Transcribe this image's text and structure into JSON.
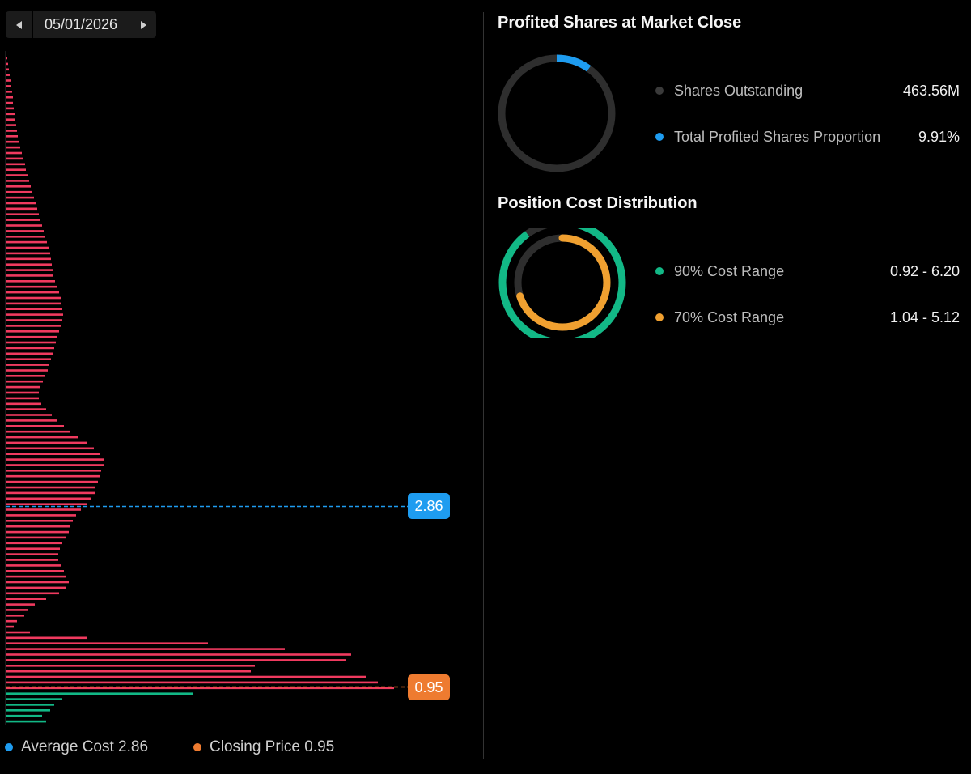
{
  "date_nav": {
    "date": "05/01/2026",
    "prev_icon": "chevron-left-icon",
    "next_icon": "chevron-right-icon"
  },
  "chart_data": {
    "type": "bar",
    "orientation": "horizontal",
    "description_source": "chip distribution by price level",
    "profit_color": "#12b886",
    "loss_color": "#f03a5f",
    "profit_bar_count": 6,
    "values": [
      1,
      2,
      3,
      4,
      5,
      6,
      7,
      8,
      9,
      9,
      10,
      11,
      12,
      13,
      14,
      15,
      17,
      18,
      20,
      22,
      24,
      25,
      27,
      29,
      31,
      33,
      35,
      37,
      39,
      41,
      43,
      45,
      47,
      49,
      51,
      53,
      55,
      56,
      57,
      58,
      59,
      61,
      63,
      66,
      68,
      69,
      70,
      71,
      70,
      68,
      66,
      64,
      62,
      60,
      58,
      56,
      54,
      52,
      49,
      46,
      43,
      41,
      41,
      44,
      50,
      57,
      64,
      72,
      80,
      90,
      100,
      109,
      117,
      122,
      121,
      118,
      116,
      114,
      111,
      110,
      106,
      100,
      93,
      87,
      83,
      80,
      78,
      74,
      70,
      67,
      65,
      65,
      68,
      72,
      75,
      78,
      74,
      66,
      50,
      36,
      27,
      23,
      14,
      10,
      30,
      100,
      250,
      345,
      427,
      420,
      308,
      303,
      445,
      460,
      480,
      232,
      70,
      60,
      55,
      45,
      50
    ],
    "average_cost": {
      "label": "2.86",
      "legend_text": "Average Cost 2.86",
      "value": 2.86,
      "color": "#1e9cf0"
    },
    "closing_price": {
      "label": "0.95",
      "legend_text": "Closing Price 0.95",
      "value": 0.95,
      "color": "#ee7b30"
    }
  },
  "profited_shares": {
    "title": "Profited Shares at Market Close",
    "proportion": 0.0991,
    "rows": [
      {
        "label": "Shares Outstanding",
        "value": "463.56M",
        "dot_color": "#3a3a3a"
      },
      {
        "label": "Total Profited Shares Proportion",
        "value": "9.91%",
        "dot_color": "#1e9cf0"
      }
    ],
    "ring_track_color": "#2e2e2e",
    "ring_fill_color": "#1e9cf0"
  },
  "cost_distribution": {
    "title": "Position Cost Distribution",
    "outer_fraction": 0.9,
    "inner_fraction": 0.7,
    "rows": [
      {
        "label": "90% Cost Range",
        "value": "0.92 - 6.20",
        "dot_color": "#12b886"
      },
      {
        "label": "70% Cost Range",
        "value": "1.04 - 5.12",
        "dot_color": "#f0a030"
      }
    ],
    "outer_color": "#12b886",
    "inner_color": "#f0a030",
    "track_color": "#2e2e2e"
  }
}
